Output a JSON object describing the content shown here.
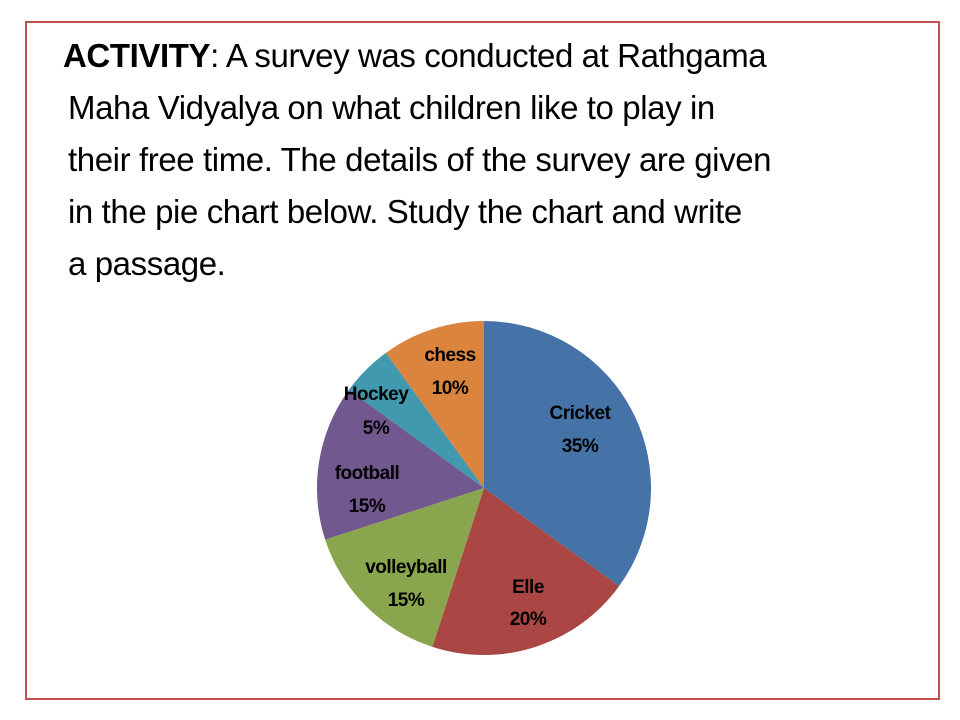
{
  "activity": {
    "heading": "ACTIVITY",
    "lines": [
      ": A survey was conducted at Rathgama",
      "Maha Vidyalya on what children like to play in",
      "their free time. The details of the survey are given",
      "in the pie chart below. Study the chart and write",
      "a passage."
    ]
  },
  "chart_data": {
    "type": "pie",
    "title": "",
    "slices": [
      {
        "name": "Cricket",
        "label": "35%",
        "value": 35,
        "color": "#4572a7"
      },
      {
        "name": "Elle",
        "label": "20%",
        "value": 20,
        "color": "#aa4643"
      },
      {
        "name": "volleyball",
        "label": "15%",
        "value": 15,
        "color": "#89a54e"
      },
      {
        "name": "football",
        "label": "15%",
        "value": 15,
        "color": "#71588f"
      },
      {
        "name": "Hockey",
        "label": "5%",
        "value": 5,
        "color": "#4198af"
      },
      {
        "name": "chess",
        "label": "10%",
        "value": 10,
        "color": "#db843d"
      }
    ],
    "legend": "none"
  }
}
